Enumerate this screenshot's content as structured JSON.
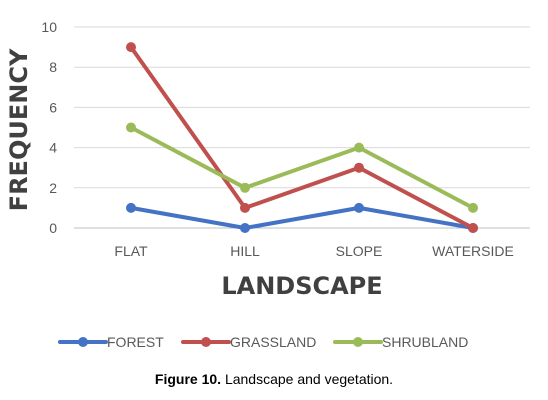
{
  "chart_data": {
    "type": "line",
    "categories": [
      "FLAT",
      "HILL",
      "SLOPE",
      "WATERSIDE"
    ],
    "series": [
      {
        "name": "FOREST",
        "values": [
          1,
          0,
          1,
          0
        ],
        "color": "#4472C4"
      },
      {
        "name": "GRASSLAND",
        "values": [
          9,
          1,
          3,
          0
        ],
        "color": "#C0504D"
      },
      {
        "name": "SHRUBLAND",
        "values": [
          5,
          2,
          4,
          1
        ],
        "color": "#9BBB59"
      }
    ],
    "xlabel": "LANDSCAPE",
    "ylabel": "FREQUENCY",
    "ylim": [
      0,
      10
    ],
    "yticks": [
      0,
      2,
      4,
      6,
      8,
      10
    ],
    "grid": true,
    "legend_position": "bottom"
  },
  "caption": {
    "number": "Figure 10.",
    "text": "Landscape and vegetation."
  }
}
